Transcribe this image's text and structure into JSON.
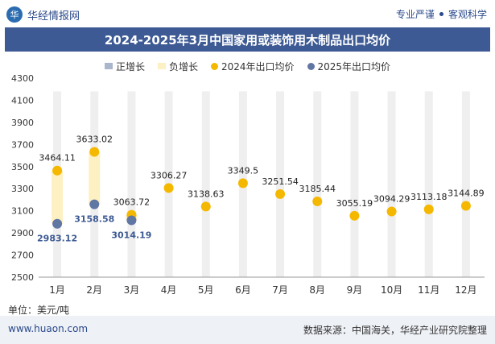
{
  "header": {
    "brand_name": "华经情报网",
    "logo_glyph": "华",
    "tag_left": "专业严谨",
    "tag_right": "客观科学"
  },
  "footer": {
    "unit_label": "单位：美元/吨",
    "website": "www.huaon.com",
    "source": "数据来源：中国海关，华经产业研究院整理"
  },
  "colors": {
    "title_bg": "#3d5a94",
    "series_2024": "#f5b800",
    "series_2025": "#6076a3",
    "positive_growth": "#aab6cc",
    "negative_growth": "#fdf0c2",
    "column_bg": "#efefef"
  },
  "chart_data": {
    "type": "scatter",
    "title": "2024-2025年3月中国家用或装饰用木制品出口均价",
    "legend": [
      "正增长",
      "负增长",
      "2024年出口均价",
      "2025年出口均价"
    ],
    "categories": [
      "1月",
      "2月",
      "3月",
      "4月",
      "5月",
      "6月",
      "7月",
      "8月",
      "9月",
      "10月",
      "11月",
      "12月"
    ],
    "ylim": [
      2500,
      4300
    ],
    "yticks": [
      2500,
      2700,
      2900,
      3100,
      3300,
      3500,
      3700,
      3900,
      4100,
      4300
    ],
    "series": [
      {
        "name": "2024年出口均价",
        "values": [
          3464.11,
          3633.02,
          3063.72,
          3306.27,
          3138.63,
          3349.5,
          3251.54,
          3185.44,
          3055.19,
          3094.29,
          3113.18,
          3144.89
        ],
        "labels": [
          "3464.11",
          "3633.02",
          "3063.72",
          "3306.27",
          "3138.63",
          "3349.5",
          "3251.54",
          "3185.44",
          "3055.19",
          "3094.29",
          "3113.18",
          "3144.89"
        ]
      },
      {
        "name": "2025年出口均价",
        "values": [
          2983.12,
          3158.58,
          3014.19,
          null,
          null,
          null,
          null,
          null,
          null,
          null,
          null,
          null
        ],
        "labels": [
          "2983.12",
          "3158.58",
          "3014.19"
        ]
      }
    ],
    "growth_bars": [
      {
        "category": "1月",
        "from": 2983.12,
        "to": 3464.11,
        "kind": "负增长"
      },
      {
        "category": "2月",
        "from": 3158.58,
        "to": 3633.02,
        "kind": "负增长"
      },
      {
        "category": "3月",
        "from": 3014.19,
        "to": 3063.72,
        "kind": "负增长"
      }
    ]
  }
}
